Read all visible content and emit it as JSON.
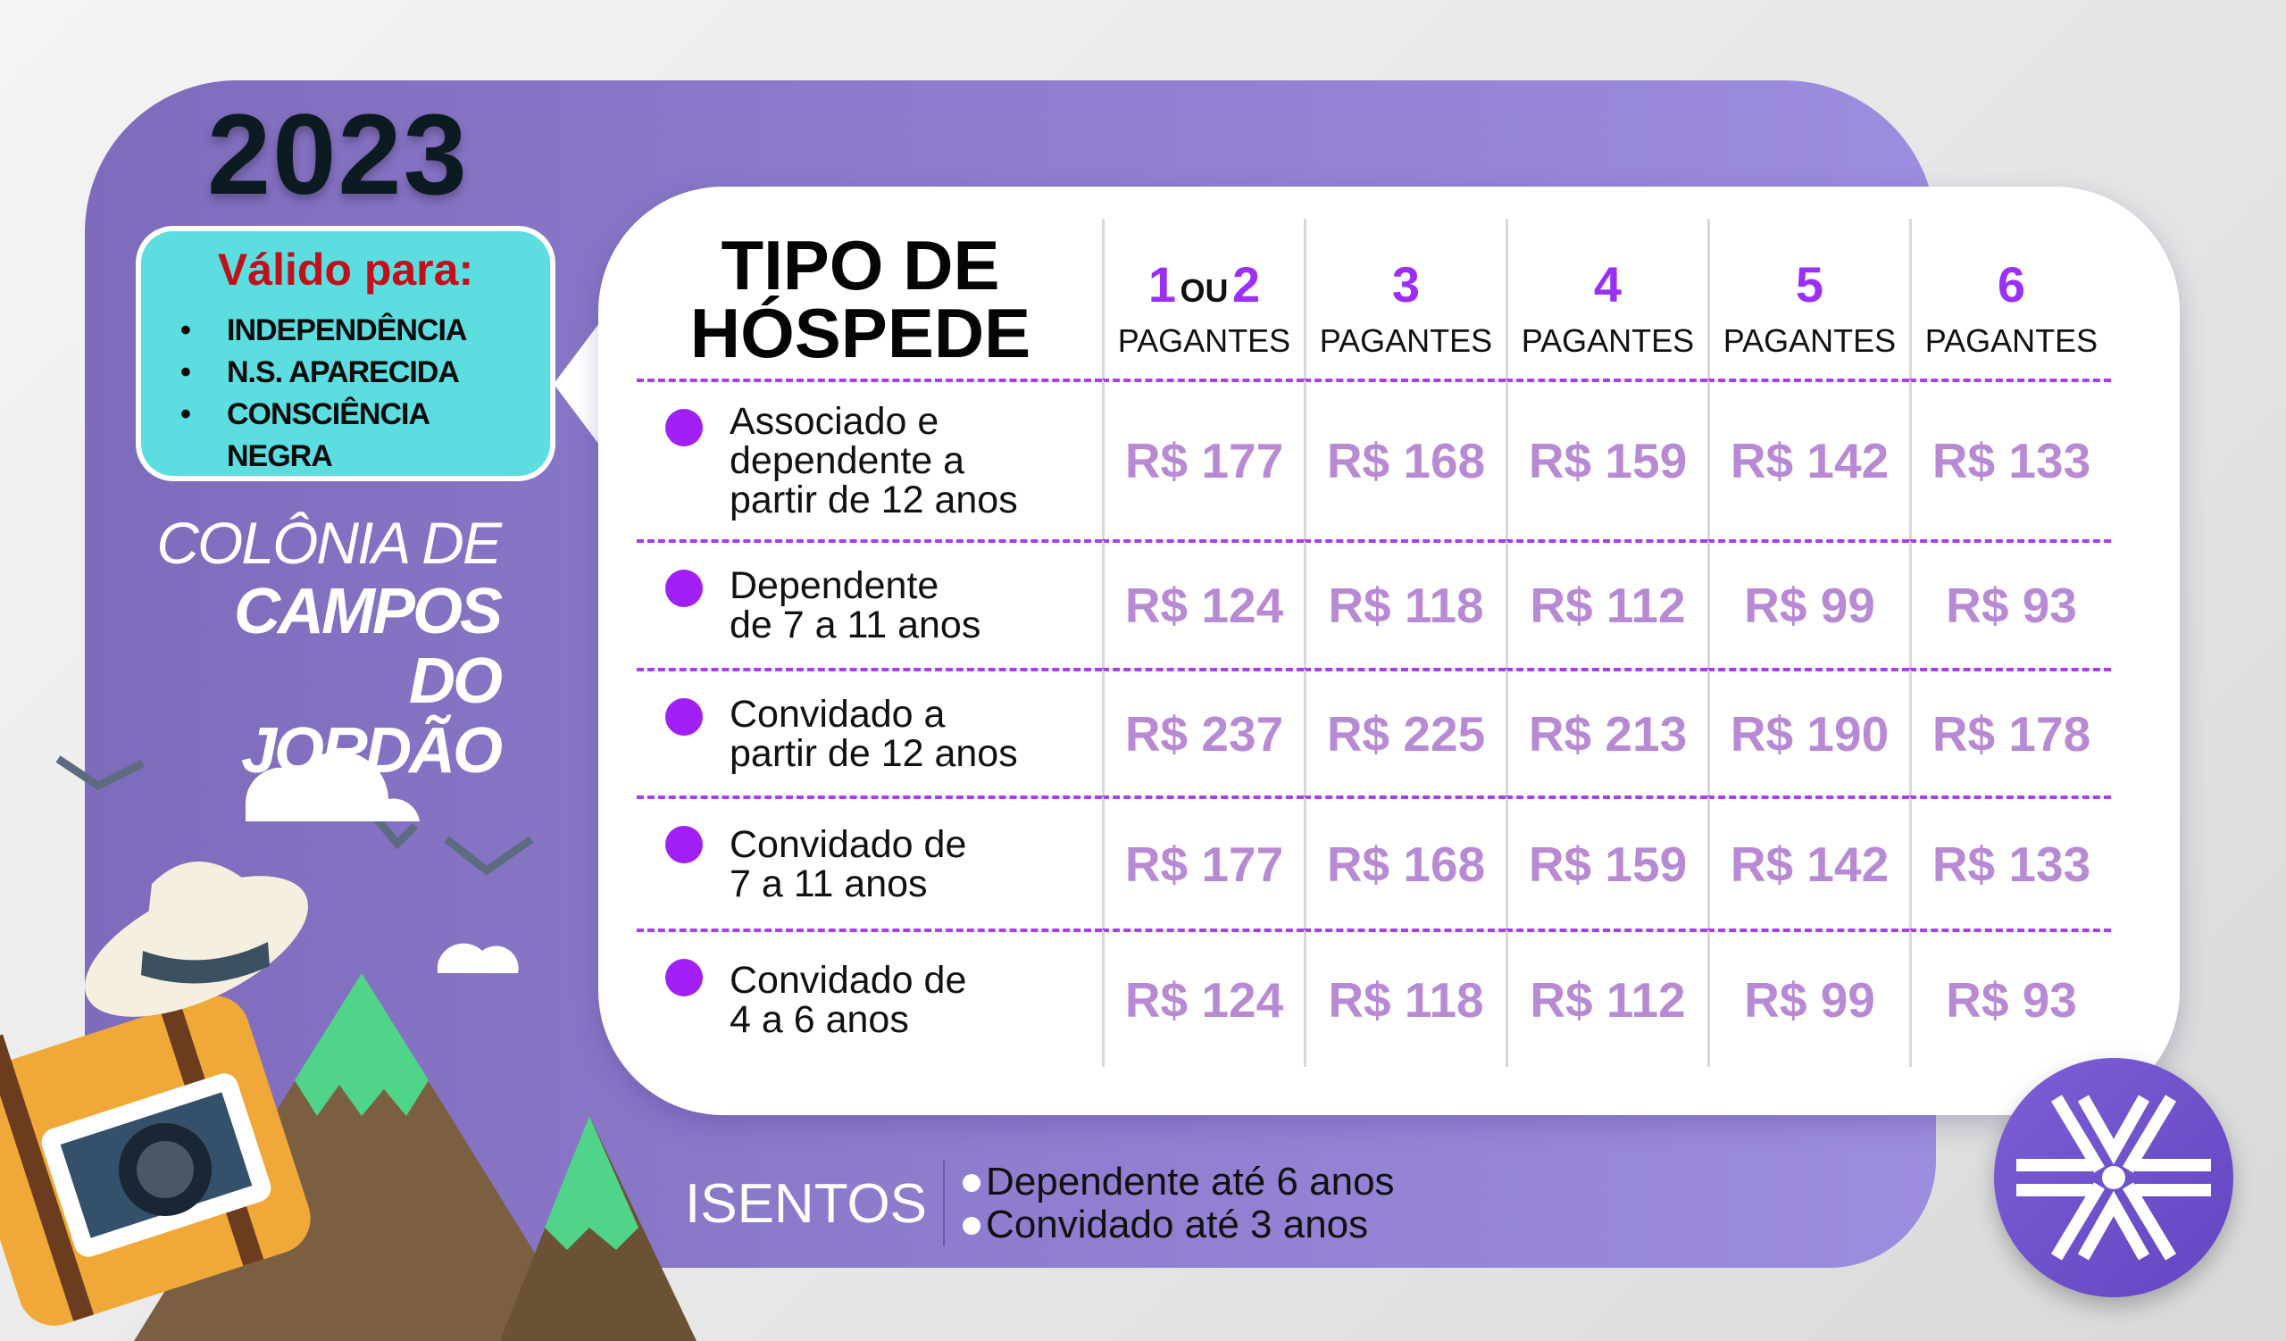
{
  "year": "2023",
  "valid_box": {
    "title": "Válido para:",
    "items": [
      "INDEPENDÊNCIA",
      "N.S. APARECIDA",
      "CONSCIÊNCIA NEGRA"
    ]
  },
  "location": {
    "line1": "COLÔNIA DE",
    "line2": "CAMPOS",
    "line3": "DO JORDÃO"
  },
  "table": {
    "header_title_line1": "TIPO DE",
    "header_title_line2": "HÓSPEDE",
    "columns": [
      {
        "num_a": "1",
        "or": "OU",
        "num_b": "2",
        "label": "PAGANTES"
      },
      {
        "num_a": "3",
        "label": "PAGANTES"
      },
      {
        "num_a": "4",
        "label": "PAGANTES"
      },
      {
        "num_a": "5",
        "label": "PAGANTES"
      },
      {
        "num_a": "6",
        "label": "PAGANTES"
      }
    ],
    "rows": [
      {
        "lines": [
          "Associado e",
          "dependente a",
          "partir de 12 anos"
        ],
        "prices": [
          "R$ 177",
          "R$ 168",
          "R$ 159",
          "R$ 142",
          "R$ 133"
        ]
      },
      {
        "lines": [
          "Dependente",
          "de 7 a 11 anos"
        ],
        "prices": [
          "R$ 124",
          "R$ 118",
          "R$ 112",
          "R$ 99",
          "R$ 93"
        ]
      },
      {
        "lines": [
          "Convidado a",
          "partir de 12 anos"
        ],
        "prices": [
          "R$ 237",
          "R$ 225",
          "R$ 213",
          "R$ 190",
          "R$ 178"
        ]
      },
      {
        "lines": [
          "Convidado de",
          "7 a 11 anos"
        ],
        "prices": [
          "R$ 177",
          "R$ 168",
          "R$ 159",
          "R$ 142",
          "R$ 133"
        ]
      },
      {
        "lines": [
          "Convidado de",
          "4 a 6 anos"
        ],
        "prices": [
          "R$ 124",
          "R$ 118",
          "R$ 112",
          "R$ 99",
          "R$ 93"
        ]
      }
    ]
  },
  "exempt": {
    "title": "ISENTOS",
    "items": [
      "Dependente até 6 anos",
      "Convidado até 3 anos"
    ]
  },
  "colors": {
    "panel": "#8c7acb",
    "price": "#b98ad4",
    "accent": "#9b2ff5",
    "valid_box": "#5cdde0",
    "valid_title": "#c0101a"
  },
  "icons": {
    "logo": "association-logo",
    "illustration": "travel-suitcase-camera-hat-mountains"
  }
}
